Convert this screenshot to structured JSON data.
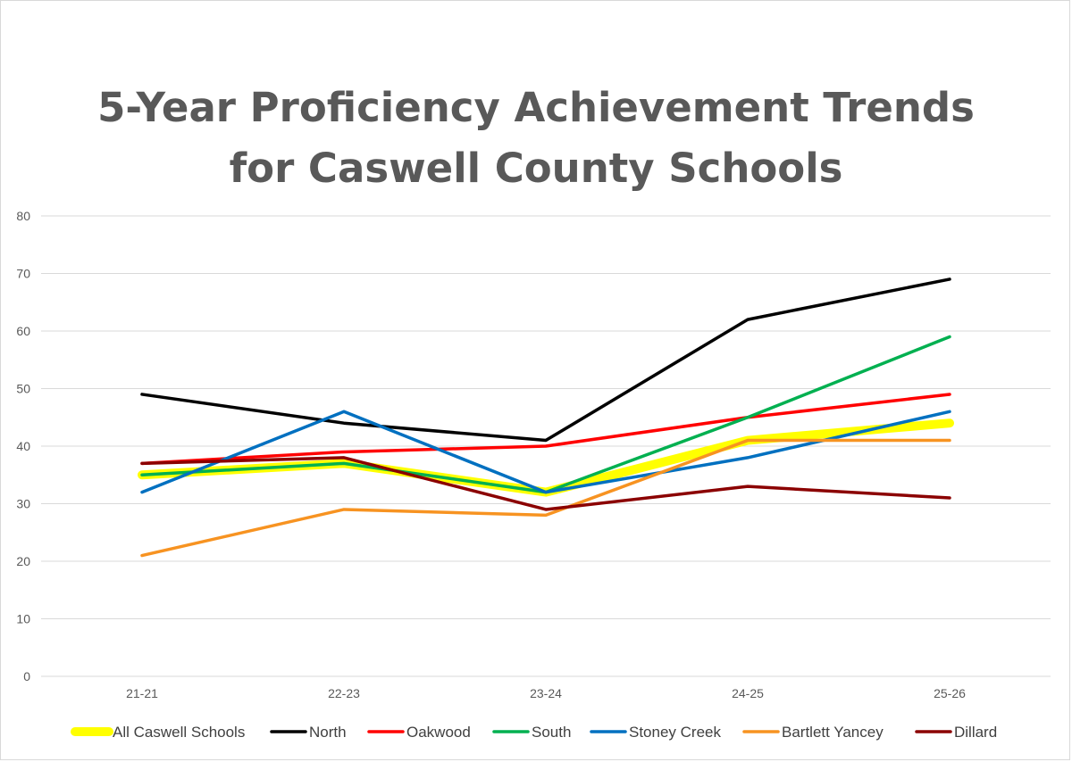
{
  "chart_data": {
    "type": "line",
    "title_lines": [
      "5-Year Proficiency Achievement Trends",
      "for Caswell County Schools"
    ],
    "xlabel": "",
    "ylabel": "",
    "categories": [
      "21-21",
      "22-23",
      "23-24",
      "24-25",
      "25-26"
    ],
    "ylim": [
      0,
      80
    ],
    "yticks": [
      0,
      10,
      20,
      30,
      40,
      50,
      60,
      70,
      80
    ],
    "grid": true,
    "legend_position": "bottom",
    "series": [
      {
        "name": "All Caswell Schools",
        "color": "#ffff00",
        "values": [
          35,
          37,
          32,
          41,
          44
        ],
        "emphasis": true
      },
      {
        "name": "North",
        "color": "#000000",
        "values": [
          49,
          44,
          41,
          62,
          69
        ]
      },
      {
        "name": "Oakwood",
        "color": "#ff0000",
        "values": [
          37,
          39,
          40,
          45,
          49
        ]
      },
      {
        "name": "South",
        "color": "#00b050",
        "values": [
          35,
          37,
          32,
          45,
          59
        ]
      },
      {
        "name": "Stoney Creek",
        "color": "#0070c0",
        "values": [
          32,
          46,
          32,
          38,
          46
        ]
      },
      {
        "name": "Bartlett Yancey",
        "color": "#f79321",
        "values": [
          21,
          29,
          28,
          41,
          41
        ]
      },
      {
        "name": "Dillard",
        "color": "#8b0000",
        "values": [
          37,
          38,
          29,
          33,
          31
        ]
      }
    ]
  }
}
